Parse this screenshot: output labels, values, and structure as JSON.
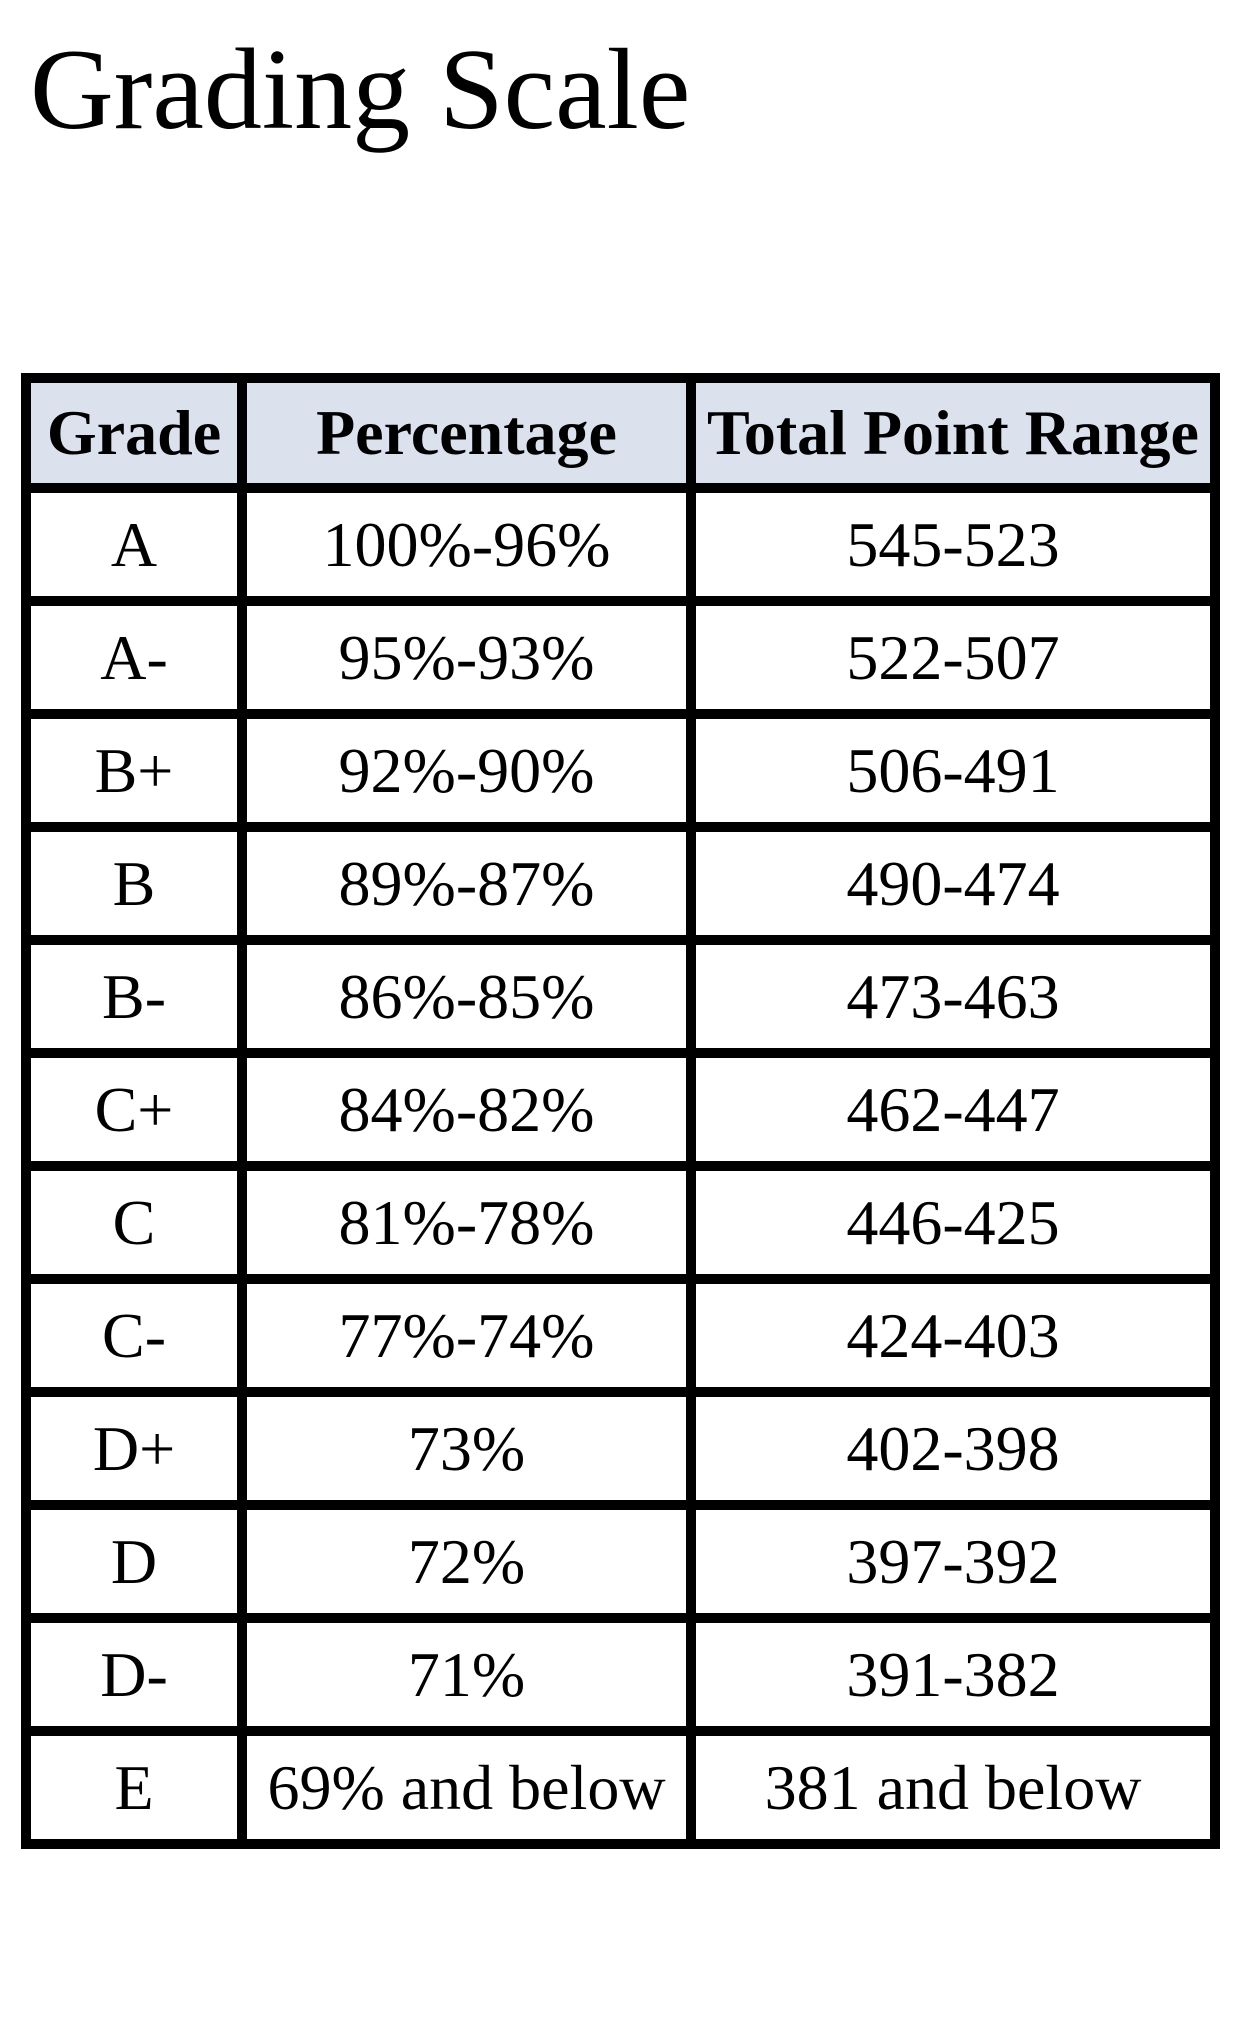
{
  "page": {
    "title": "Grading Scale",
    "background_color": "#ffffff"
  },
  "table": {
    "columns": [
      {
        "key": "grade",
        "label": "Grade"
      },
      {
        "key": "percentage",
        "label": "Percentage"
      },
      {
        "key": "points",
        "label": "Total Point Range"
      }
    ],
    "header_bg_color": "#dbe1ed",
    "border_color": "#000000",
    "rows": [
      {
        "grade": "A",
        "percentage": "100%-96%",
        "points": "545-523"
      },
      {
        "grade": "A-",
        "percentage": "95%-93%",
        "points": "522-507"
      },
      {
        "grade": "B+",
        "percentage": "92%-90%",
        "points": "506-491"
      },
      {
        "grade": "B",
        "percentage": "89%-87%",
        "points": "490-474"
      },
      {
        "grade": "B-",
        "percentage": "86%-85%",
        "points": "473-463"
      },
      {
        "grade": "C+",
        "percentage": "84%-82%",
        "points": "462-447"
      },
      {
        "grade": "C",
        "percentage": "81%-78%",
        "points": "446-425"
      },
      {
        "grade": "C-",
        "percentage": "77%-74%",
        "points": "424-403"
      },
      {
        "grade": "D+",
        "percentage": "73%",
        "points": "402-398"
      },
      {
        "grade": "D",
        "percentage": "72%",
        "points": "397-392"
      },
      {
        "grade": "D-",
        "percentage": "71%",
        "points": "391-382"
      },
      {
        "grade": "E",
        "percentage": "69% and below",
        "points": "381 and below"
      }
    ]
  }
}
